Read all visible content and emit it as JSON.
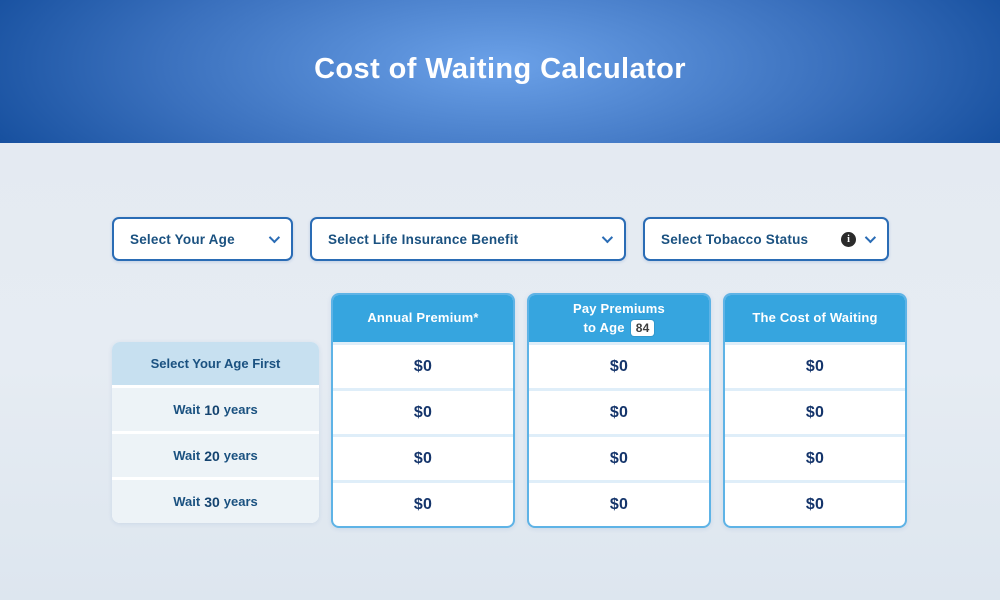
{
  "hero": {
    "title": "Cost of Waiting Calculator"
  },
  "filters": {
    "age": {
      "label": "Select Your Age"
    },
    "benefit": {
      "label": "Select Life Insurance Benefit"
    },
    "tobacco": {
      "label": "Select Tobacco Status",
      "info_glyph": "i"
    }
  },
  "table": {
    "columns": {
      "premium": {
        "label": "Annual Premium*"
      },
      "pay_to_age": {
        "line1": "Pay Premiums",
        "line2": "to Age",
        "age": "84"
      },
      "cost": {
        "label": "The Cost of Waiting"
      }
    },
    "rows": [
      {
        "label": "Select Your Age First",
        "values": [
          "$0",
          "$0",
          "$0"
        ]
      },
      {
        "prefix": "Wait",
        "years": "10",
        "suffix": "years",
        "values": [
          "$0",
          "$0",
          "$0"
        ]
      },
      {
        "prefix": "Wait",
        "years": "20",
        "suffix": "years",
        "values": [
          "$0",
          "$0",
          "$0"
        ]
      },
      {
        "prefix": "Wait",
        "years": "30",
        "suffix": "years",
        "values": [
          "$0",
          "$0",
          "$0"
        ]
      }
    ]
  },
  "colors": {
    "accent_blue": "#36a5df",
    "column_border": "#5eb3e6",
    "dropdown_border": "#2a6cb5",
    "navy_text": "#1a5180",
    "value_text": "#15356b",
    "row_highlight_bg": "#c7e0f0",
    "row_default_bg": "#edf3f7",
    "hero_center": "#6ba1e8",
    "hero_edge": "#17509f",
    "page_bg": "#e4eaf1"
  }
}
